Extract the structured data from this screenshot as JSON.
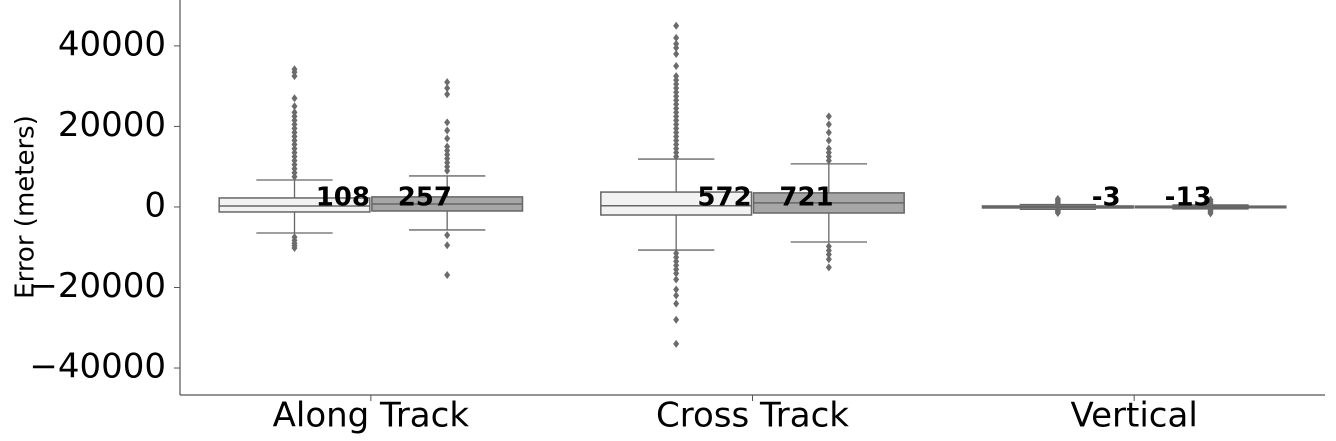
{
  "chart_data": {
    "type": "box",
    "ylabel": "Error (meters)",
    "categories": [
      "Along Track",
      "Cross Track",
      "Vertical"
    ],
    "ylim": [
      -46700,
      51400
    ],
    "yticks": [
      {
        "value": 40000,
        "label": "40000"
      },
      {
        "value": 20000,
        "label": "20000"
      },
      {
        "value": 0,
        "label": "0"
      },
      {
        "value": -20000,
        "label": "−20000"
      },
      {
        "value": -40000,
        "label": "−40000"
      }
    ],
    "grid": false,
    "series": [
      {
        "color": "#f2f2f2",
        "labels": [
          108,
          572,
          -3
        ],
        "boxes": [
          {
            "whislo": -6460,
            "q1": -1242,
            "med": 250,
            "q3": 2236,
            "whishi": 6700,
            "fliers": [
              7500,
              8500,
              9500,
              10500,
              11500,
              12500,
              13500,
              14500,
              15500,
              16500,
              17500,
              18500,
              19500,
              20500,
              21500,
              22500,
              23500,
              25000,
              27000,
              32500,
              33500,
              34200,
              -7500,
              -8300,
              -9000,
              -9600,
              -10200
            ]
          },
          {
            "whislo": -10700,
            "q1": -2000,
            "med": 300,
            "q3": 3700,
            "whishi": 11900,
            "fliers": [
              12500,
              13500,
              14500,
              15500,
              16500,
              17500,
              18500,
              19500,
              20500,
              21500,
              22500,
              23500,
              24500,
              25500,
              26500,
              27500,
              28500,
              29500,
              30500,
              31500,
              32500,
              35000,
              38000,
              39500,
              40500,
              42000,
              45000,
              -11500,
              -12500,
              -13500,
              -14500,
              -15500,
              -16500,
              -18000,
              -20500,
              -22000,
              -24000,
              -28000,
              -34000
            ]
          },
          {
            "whislo": -600,
            "q1": -250,
            "med": 0,
            "q3": 250,
            "whishi": 600,
            "fliers": [
              900,
              1300,
              1700,
              2000,
              -900,
              -1200,
              -1500
            ]
          }
        ]
      },
      {
        "color": "#a6a6a6",
        "labels": [
          257,
          721,
          -13
        ],
        "boxes": [
          {
            "whislo": -5700,
            "q1": -1000,
            "med": 750,
            "q3": 2500,
            "whishi": 7700,
            "fliers": [
              9000,
              10000,
              11000,
              12000,
              13000,
              14000,
              15000,
              17000,
              19000,
              21000,
              28000,
              29500,
              31000,
              -7000,
              -9500,
              -16900
            ]
          },
          {
            "whislo": -8700,
            "q1": -1500,
            "med": 1000,
            "q3": 3500,
            "whishi": 10700,
            "fliers": [
              11500,
              12500,
              13500,
              14500,
              16500,
              18500,
              20500,
              22500,
              -9800,
              -10800,
              -11800,
              -13000,
              -15000
            ]
          },
          {
            "whislo": -500,
            "q1": -200,
            "med": 0,
            "q3": 200,
            "whishi": 500,
            "fliers": [
              900,
              1400,
              1800,
              -800,
              -1200,
              -1600
            ]
          }
        ]
      }
    ]
  }
}
